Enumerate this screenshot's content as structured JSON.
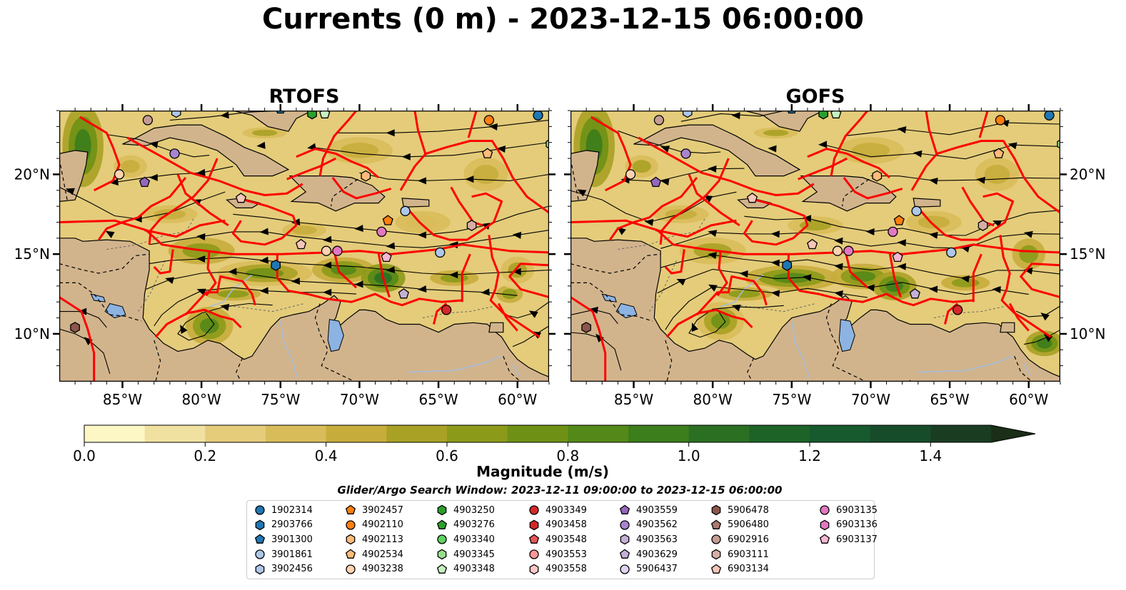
{
  "title": "Currents (0 m) - 2023-12-15 06:00:00",
  "panels": [
    {
      "title": "RTOFS",
      "id": "rtofs"
    },
    {
      "title": "GOFS",
      "id": "gofs"
    }
  ],
  "colors": {
    "land": "#d2b48c",
    "eez": "#ff0000",
    "streamline": "#000000",
    "lake": "#8db3e2",
    "river": "#a6bddb"
  },
  "chart_data": {
    "type": "heatmap",
    "field": "surface current magnitude with streamlines",
    "lon_range": [
      -89,
      -58
    ],
    "lat_range": [
      7,
      24
    ],
    "x_ticks": [
      "85°W",
      "80°W",
      "75°W",
      "70°W",
      "65°W",
      "60°W"
    ],
    "x_tick_values": [
      -85,
      -80,
      -75,
      -70,
      -65,
      -60
    ],
    "y_ticks": [
      "20°N",
      "15°N",
      "10°N"
    ],
    "y_tick_values": [
      20,
      15,
      10
    ],
    "colorbar": {
      "label": "Magnitude (m/s)",
      "min": 0.0,
      "max": 1.5,
      "step": 0.1,
      "extend": "max",
      "tick_labels": [
        "0.0",
        "0.2",
        "0.4",
        "0.6",
        "0.8",
        "1.0",
        "1.2",
        "1.4"
      ],
      "tick_values": [
        0.0,
        0.2,
        0.4,
        0.6,
        0.8,
        1.0,
        1.2,
        1.4
      ],
      "colors": [
        "#fdf7c6",
        "#f0e1a0",
        "#e4cc7a",
        "#d9bc5a",
        "#c6ad3c",
        "#a8a125",
        "#8c9a19",
        "#6e9115",
        "#548818",
        "#3c7d1c",
        "#2a6f22",
        "#1d6328",
        "#175a2d",
        "#174c2a",
        "#1a3d22",
        "#1b2e18"
      ]
    }
  },
  "legend": {
    "window_label": "Glider/Argo Search Window: 2023-12-11 09:00:00 to 2023-12-15 06:00:00",
    "items": [
      {
        "label": "1902314",
        "color": "#1f77b4",
        "shape": "circle"
      },
      {
        "label": "2903766",
        "color": "#1f77b4",
        "shape": "hexagon"
      },
      {
        "label": "3901300",
        "color": "#1f77b4",
        "shape": "pentagon"
      },
      {
        "label": "3901861",
        "color": "#aec7e8",
        "shape": "circle"
      },
      {
        "label": "3902456",
        "color": "#aec7e8",
        "shape": "hexagon"
      },
      {
        "label": "3902457",
        "color": "#ff7f0e",
        "shape": "pentagon"
      },
      {
        "label": "4902110",
        "color": "#ff7f0e",
        "shape": "circle"
      },
      {
        "label": "4902113",
        "color": "#ffbb78",
        "shape": "hexagon"
      },
      {
        "label": "4902534",
        "color": "#ffbb78",
        "shape": "pentagon"
      },
      {
        "label": "4903238",
        "color": "#ffd3b0",
        "shape": "circle"
      },
      {
        "label": "4903250",
        "color": "#2ca02c",
        "shape": "hexagon"
      },
      {
        "label": "4903276",
        "color": "#2ca02c",
        "shape": "pentagon"
      },
      {
        "label": "4903340",
        "color": "#5fd35f",
        "shape": "circle"
      },
      {
        "label": "4903345",
        "color": "#98df8a",
        "shape": "hexagon"
      },
      {
        "label": "4903348",
        "color": "#c7f0c0",
        "shape": "pentagon"
      },
      {
        "label": "4903349",
        "color": "#d62728",
        "shape": "circle"
      },
      {
        "label": "4903458",
        "color": "#d62728",
        "shape": "hexagon"
      },
      {
        "label": "4903548",
        "color": "#e45758",
        "shape": "pentagon"
      },
      {
        "label": "4903553",
        "color": "#ff9896",
        "shape": "circle"
      },
      {
        "label": "4903558",
        "color": "#ffc8c6",
        "shape": "hexagon"
      },
      {
        "label": "4903559",
        "color": "#9467bd",
        "shape": "pentagon"
      },
      {
        "label": "4903562",
        "color": "#a884cf",
        "shape": "circle"
      },
      {
        "label": "4903563",
        "color": "#c5b0d5",
        "shape": "hexagon"
      },
      {
        "label": "4903629",
        "color": "#c5b0d5",
        "shape": "pentagon"
      },
      {
        "label": "5906437",
        "color": "#e1d2f0",
        "shape": "circle"
      },
      {
        "label": "5906478",
        "color": "#8c564b",
        "shape": "hexagon"
      },
      {
        "label": "5906480",
        "color": "#a97a6e",
        "shape": "pentagon"
      },
      {
        "label": "6902916",
        "color": "#c49c94",
        "shape": "circle"
      },
      {
        "label": "6903111",
        "color": "#d6aea6",
        "shape": "hexagon"
      },
      {
        "label": "6903134",
        "color": "#f7c6b8",
        "shape": "pentagon"
      },
      {
        "label": "6903135",
        "color": "#e377c2",
        "shape": "circle"
      },
      {
        "label": "6903136",
        "color": "#e377c2",
        "shape": "hexagon"
      },
      {
        "label": "6903137",
        "color": "#f7b6d2",
        "shape": "pentagon"
      }
    ]
  }
}
